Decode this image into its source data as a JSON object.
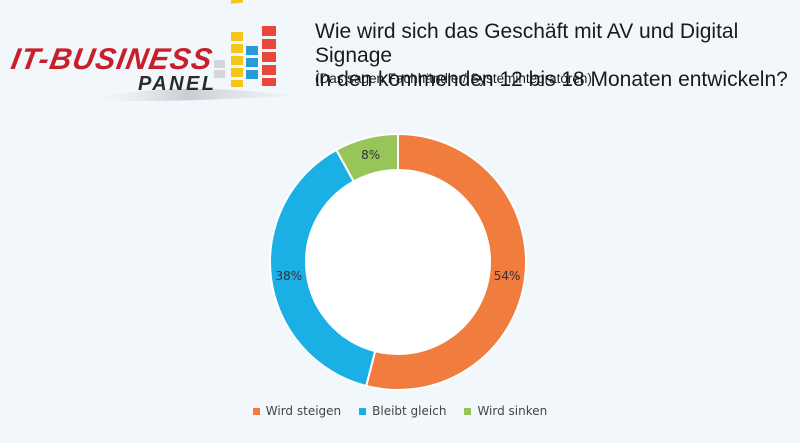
{
  "logo": {
    "line1": "IT-BUSINESS",
    "line2": "PANEL",
    "colors": {
      "red": "#c8202a",
      "dark": "#2b2b2b",
      "yellow": "#f5c518",
      "blue": "#2a9ad8",
      "orange_red": "#e8473a",
      "grey": "#d3d6dc"
    }
  },
  "header": {
    "title_line1": "Wie wird sich das Geschäft mit AV und Digital Signage",
    "title_line2": "in den kommenden 12 bis 18 Monaten entwickeln?",
    "subtitle": "(Das sagen Fachhändler/ Systemintegratoren)"
  },
  "chart_data": {
    "type": "pie",
    "subtype": "donut",
    "title": "Wie wird sich das Geschäft mit AV und Digital Signage in den kommenden 12 bis 18 Monaten entwickeln?",
    "subtitle": "(Das sagen Fachhändler/ Systemintegratoren)",
    "categories": [
      "Wird steigen",
      "Bleibt gleich",
      "Wird sinken"
    ],
    "values": [
      54,
      38,
      8
    ],
    "labels": [
      "54%",
      "38%",
      "8%"
    ],
    "colors": [
      "#f07c3e",
      "#1ab0e6",
      "#98c55a"
    ],
    "legend_position": "bottom",
    "start_angle_deg": 0,
    "direction": "clockwise"
  },
  "legend": {
    "items": [
      {
        "label": "Wird steigen",
        "color": "#f07c3e"
      },
      {
        "label": "Bleibt gleich",
        "color": "#1ab0e6"
      },
      {
        "label": "Wird sinken",
        "color": "#98c55a"
      }
    ]
  }
}
